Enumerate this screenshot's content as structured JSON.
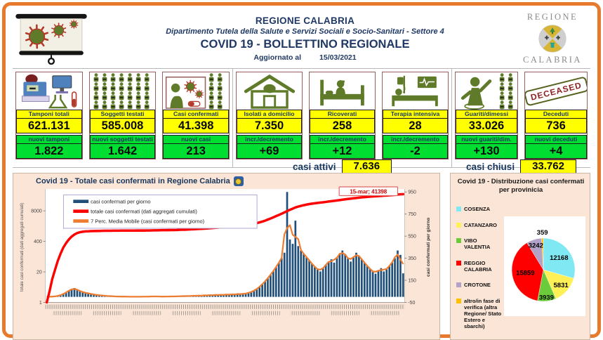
{
  "header": {
    "region": "REGIONE CALABRIA",
    "department": "Dipartimento Tutela della Salute e Servizi Sociali e Socio-Sanitari - Settore 4",
    "title": "COVID 19 - BOLLETTINO REGIONALE",
    "updated_label": "Aggiornato al",
    "updated_date": "15/03/2021",
    "logo_top": "REGIONE",
    "logo_bottom": "CALABRIA"
  },
  "stats": {
    "cards": [
      {
        "label": "Tamponi totali",
        "value": "621.131",
        "sub_label": "nuovi tamponi",
        "sub_value": "1.822"
      },
      {
        "label": "Soggetti testati",
        "value": "585.008",
        "sub_label": "nuovi soggetti testati",
        "sub_value": "1.642"
      },
      {
        "label": "Casi confermati",
        "value": "41.398",
        "sub_label": "nuovi casi",
        "sub_value": "213"
      },
      {
        "label": "Isolati a domicilio",
        "value": "7.350",
        "sub_label": "incr./decremento",
        "sub_value": "+69"
      },
      {
        "label": "Ricoverati",
        "value": "258",
        "sub_label": "incr./decremento",
        "sub_value": "+12"
      },
      {
        "label": "Terapia intensiva",
        "value": "28",
        "sub_label": "incr./decremento",
        "sub_value": "-2"
      },
      {
        "label": "Guariti/dimessi",
        "value": "33.026",
        "sub_label": "nuovi guariti/dim.",
        "sub_value": "+130"
      },
      {
        "label": "Deceduti",
        "value": "736",
        "sub_label": "nuovi deceduti",
        "sub_value": "+4"
      }
    ],
    "casi_attivi_label": "casi attivi",
    "casi_attivi_value": "7.636",
    "casi_chiusi_label": "casi chiusi",
    "casi_chiusi_value": "33.762",
    "deceased_stamp": "DECEASED"
  },
  "chart_data": [
    {
      "type": "bar",
      "subtype": "combo-bar-line",
      "title": "Covid 19 - Totale casi confermati in Regione Calabria",
      "legend": [
        "casi confermati per giorno",
        "totale casi confermati (dati aggregati cumulati)",
        "7 Perc. Media Mobile (casi confermati per giorno)"
      ],
      "annotation": "15-mar; 41398",
      "x_start": "25/02/2020",
      "x_end": "15/03/2021",
      "x_note": "daily dates, sampled every 3 days",
      "y_left": {
        "label": "totale casi confermati (dati aggregati cumulati)",
        "scale": "log",
        "ticks": [
          1,
          20,
          400,
          8000
        ]
      },
      "y_right": {
        "label": "casi confermati  per giorno",
        "scale": "linear",
        "ticks": [
          -50,
          150,
          350,
          550,
          750,
          950
        ]
      },
      "series_colors": {
        "bars": "#1f4e79",
        "cumulative": "#ff0000",
        "moving_avg": "#ed7d31"
      },
      "daily": [
        0,
        1,
        2,
        4,
        8,
        15,
        25,
        40,
        55,
        70,
        80,
        65,
        50,
        45,
        38,
        30,
        28,
        22,
        18,
        15,
        12,
        10,
        8,
        6,
        5,
        4,
        3,
        3,
        2,
        2,
        1,
        1,
        1,
        1,
        2,
        1,
        2,
        3,
        2,
        6,
        3,
        2,
        4,
        2,
        3,
        5,
        3,
        4,
        6,
        5,
        8,
        6,
        10,
        8,
        12,
        9,
        14,
        11,
        16,
        13,
        18,
        15,
        20,
        16,
        22,
        18,
        24,
        20,
        26,
        22,
        28,
        25,
        30,
        35,
        45,
        55,
        70,
        90,
        115,
        140,
        170,
        200,
        234,
        270,
        310,
        350,
        400,
        950,
        520,
        480,
        690,
        460,
        420,
        390,
        360,
        330,
        300,
        270,
        250,
        230,
        260,
        290,
        320,
        340,
        310,
        360,
        390,
        420,
        380,
        350,
        320,
        360,
        400,
        370,
        340,
        310,
        280,
        250,
        230,
        210,
        240,
        260,
        230,
        250,
        280,
        310,
        350,
        420,
        380,
        213
      ],
      "cumulative": [
        1,
        3,
        10,
        25,
        60,
        120,
        220,
        340,
        480,
        640,
        790,
        900,
        980,
        1030,
        1060,
        1080,
        1095,
        1105,
        1112,
        1118,
        1124,
        1130,
        1134,
        1137,
        1140,
        1142,
        1144,
        1146,
        1147,
        1148,
        1149,
        1150,
        1152,
        1155,
        1158,
        1160,
        1163,
        1168,
        1172,
        1180,
        1186,
        1190,
        1197,
        1201,
        1206,
        1215,
        1221,
        1229,
        1240,
        1250,
        1264,
        1276,
        1294,
        1310,
        1332,
        1350,
        1376,
        1398,
        1428,
        1454,
        1488,
        1518,
        1556,
        1588,
        1630,
        1666,
        1712,
        1752,
        1802,
        1846,
        1900,
        1950,
        2008,
        2075,
        2160,
        2265,
        2400,
        2570,
        2790,
        3060,
        3390,
        3780,
        4240,
        4770,
        5380,
        6070,
        6850,
        7850,
        8900,
        9900,
        11200,
        12200,
        13100,
        13950,
        14750,
        15500,
        16200,
        16850,
        17450,
        18000,
        18600,
        19250,
        19950,
        20700,
        21400,
        22200,
        23050,
        24000,
        24900,
        25750,
        26550,
        27400,
        28350,
        29250,
        30100,
        30900,
        31650,
        32350,
        33000,
        33600,
        34200,
        34850,
        35450,
        36100,
        36800,
        37600,
        38500,
        39600,
        40600,
        41398
      ]
    },
    {
      "type": "pie",
      "title": "Covid 19 - Distribuzione casi confermati per provinicia",
      "labels": [
        "COSENZA",
        "CATANZARO",
        "VIBO VALENTIA",
        "REGGIO CALABRIA",
        "CROTONE",
        "altro/in fase di verifica (altra Regione/ Stato Estero e sbarchi)"
      ],
      "values": [
        12168,
        5831,
        3939,
        15859,
        3242,
        359
      ],
      "colors": [
        "#7fe8f2",
        "#fff056",
        "#6ccb3a",
        "#ff0000",
        "#b3a2c7",
        "#ffc000"
      ],
      "start_angle": "top, clockwise",
      "legend_position": "left"
    }
  ],
  "colors": {
    "frame_orange": "#e87a2e",
    "panel_peach": "#fbe5d6",
    "navy_text": "#17365d",
    "card_border": "#9a6060",
    "yellow": "#ffff00",
    "green": "#00de32",
    "olive_icon": "#5f7a28",
    "virus_red": "#b23a2a"
  }
}
